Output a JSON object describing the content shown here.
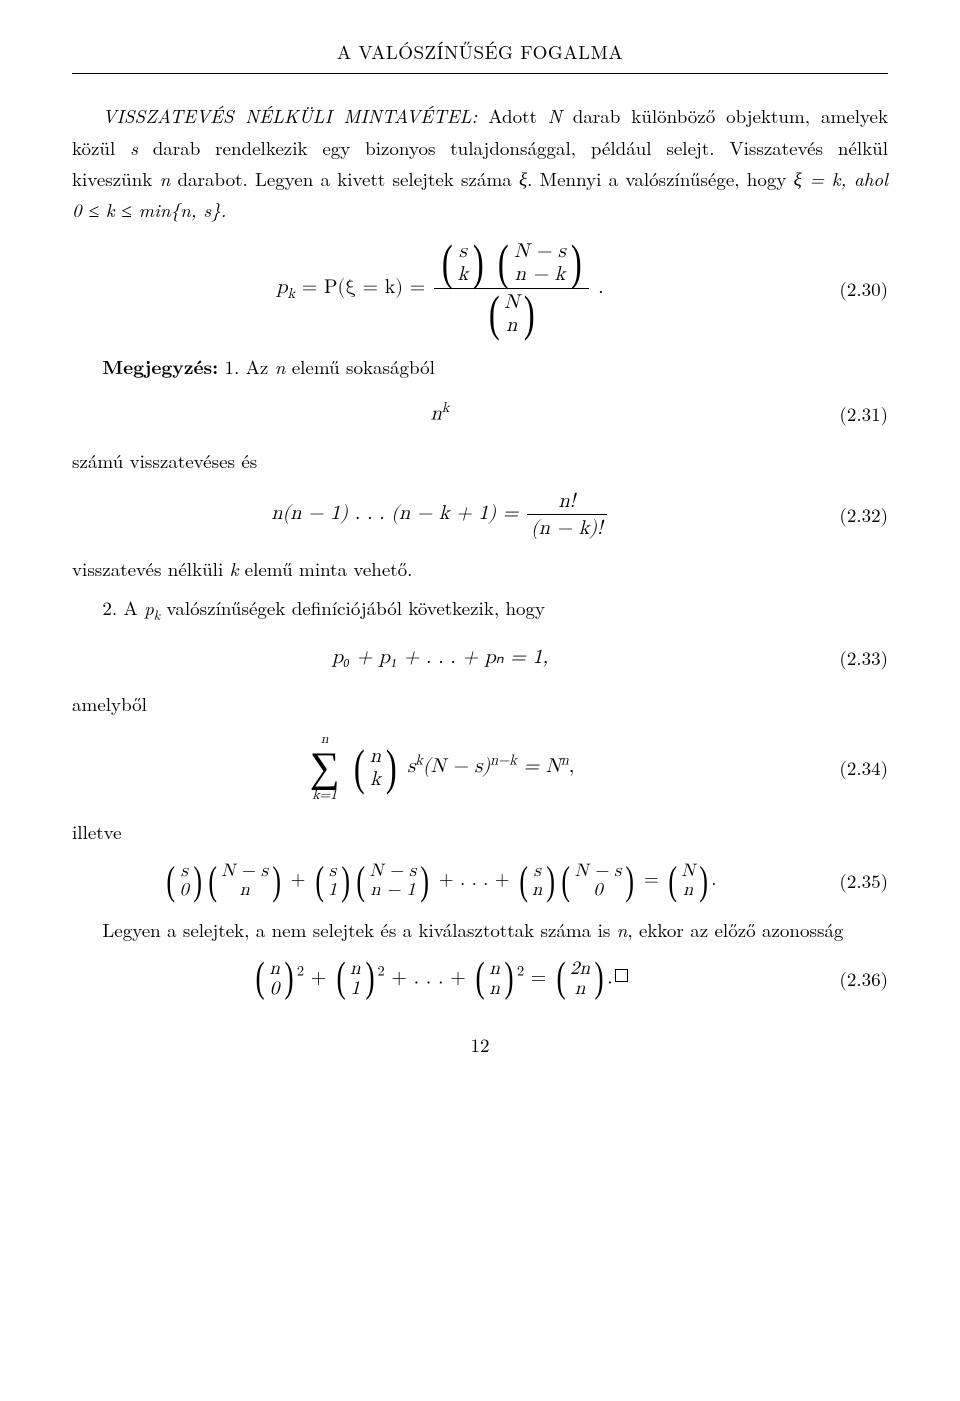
{
  "header": {
    "running": "A VALÓSZÍNŰSÉG FOGALMA"
  },
  "intro": {
    "caps": "VISSZATEVÉS NÉLKÜLI MINTAVÉTEL:",
    "rest1": " Adott ",
    "N": "N",
    "rest2": " darab különböző objektum, amelyek közül ",
    "s": "s",
    "rest3": " darab rendelkezik egy bizonyos tulajdonsággal, például selejt. Visszatevés nélkül kiveszünk ",
    "n": "n",
    "rest4": " darabot. Legyen a kivett selejtek száma ",
    "xi": "ξ",
    "rest5": ". Mennyi a valószínűsége, hogy ",
    "cond": "ξ = k, ahol 0 ≤ k ≤ min{n, s}.",
    "rest6": ""
  },
  "eq230": {
    "lead": "p",
    "lead_sub": "k",
    "eq": " = P(ξ = k) = ",
    "top_b1_t": "s",
    "top_b1_b": "k",
    "top_b2_t": "N − s",
    "top_b2_b": "n − k",
    "bot_b_t": "N",
    "bot_b_b": "n",
    "tail": ".",
    "num": "(2.30)"
  },
  "remark": {
    "label": "Megjegyzés:",
    "t1a": " 1. Az ",
    "t1n": "n",
    "t1b": " elemű sokaságból"
  },
  "eq231": {
    "body_base": "n",
    "body_exp": "k",
    "num": "(2.31)"
  },
  "between231": {
    "t": "számú visszatevéses és"
  },
  "eq232": {
    "lhs": "n(n − 1) . . . (n − k + 1) = ",
    "frac_num": "n!",
    "frac_den": "(n − k)!",
    "num": "(2.32)"
  },
  "after232": {
    "t1a": "visszatevés nélküli ",
    "t1k": "k",
    "t1b": " elemű minta vehető.",
    "t2a": "2. A ",
    "t2p": "p",
    "t2k": "k",
    "t2b": " valószínűségek definíciójából következik, hogy"
  },
  "eq233": {
    "body": "p₀ + p₁ + . . . + pₙ = 1,",
    "num": "(2.33)"
  },
  "amelybol": {
    "t": "amelyből"
  },
  "eq234": {
    "sum_top": "n",
    "sum_bot": "k=1",
    "bin_t": "n",
    "bin_b": "k",
    "mid_a": "s",
    "mid_exp1": "k",
    "mid_b": "(N − s)",
    "mid_exp2": "n−k",
    "rhs_eq": " = N",
    "rhs_exp": "n",
    "tail": ",",
    "num": "(2.34)"
  },
  "illetve": {
    "t": "illetve"
  },
  "eq235": {
    "b1t": "s",
    "b1b": "0",
    "b2t": "N − s",
    "b2b": "n",
    "plus": " + ",
    "b3t": "s",
    "b3b": "1",
    "b4t": "N − s",
    "b4b": "n − 1",
    "dots": " + . . . + ",
    "b5t": "s",
    "b5b": "n",
    "b6t": "N − s",
    "b6b": "0",
    "eq": " = ",
    "b7t": "N",
    "b7b": "n",
    "tail": ".",
    "num": "(2.35)"
  },
  "last": {
    "t1a": "Legyen a selejtek, a nem selejtek és a kiválasztottak száma is ",
    "t1n": "n",
    "t1b": ", ekkor az előző azonosság"
  },
  "eq236": {
    "b1t": "n",
    "b1b": "0",
    "b2t": "n",
    "b2b": "1",
    "bnt": "n",
    "bnb": "n",
    "rt": "2n",
    "rb": "n",
    "sq": "2",
    "plus": " + ",
    "dots": " + . . . + ",
    "eq": " = ",
    "tail": ".",
    "num": "(2.36)"
  },
  "pagenum": "12"
}
